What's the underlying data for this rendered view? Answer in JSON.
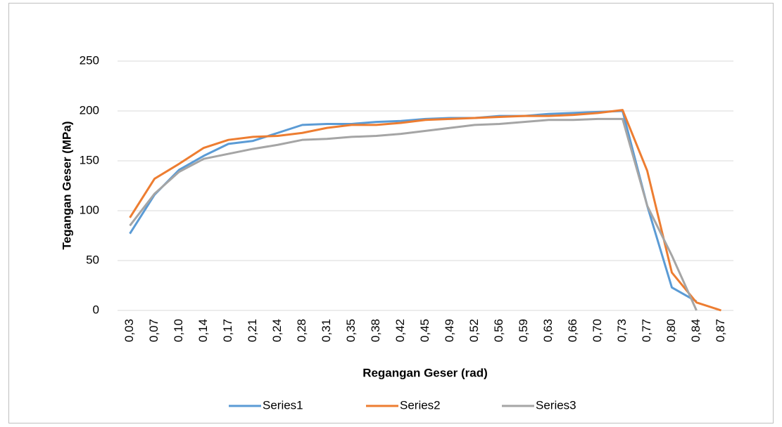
{
  "chart_data": {
    "type": "line",
    "x_label": "Regangan Geser (rad)",
    "y_label": "Tegangan Geser (MPa)",
    "categories": [
      "0,03",
      "0,07",
      "0,10",
      "0,14",
      "0,17",
      "0,21",
      "0,24",
      "0,28",
      "0,31",
      "0,35",
      "0,38",
      "0,42",
      "0,45",
      "0,49",
      "0,52",
      "0,56",
      "0,59",
      "0,63",
      "0,66",
      "0,70",
      "0,73",
      "0,77",
      "0,80",
      "0,84",
      "0,87"
    ],
    "series": [
      {
        "name": "Series1",
        "color": "#5b9bd5",
        "values": [
          77,
          116,
          141,
          155,
          167,
          170,
          178,
          186,
          187,
          187,
          189,
          190,
          192,
          193,
          193,
          195,
          195,
          197,
          198,
          199,
          200,
          105,
          23,
          9,
          null
        ]
      },
      {
        "name": "Series2",
        "color": "#ed7d31",
        "values": [
          93,
          132,
          147,
          163,
          171,
          174,
          175,
          178,
          183,
          186,
          186,
          188,
          191,
          192,
          193,
          194,
          195,
          195,
          196,
          198,
          201,
          140,
          38,
          8,
          0
        ]
      },
      {
        "name": "Series3",
        "color": "#a5a5a5",
        "values": [
          85,
          117,
          139,
          152,
          157,
          162,
          166,
          171,
          172,
          174,
          175,
          177,
          180,
          183,
          186,
          187,
          189,
          191,
          191,
          192,
          192,
          105,
          55,
          0,
          null
        ]
      }
    ],
    "ylim": [
      0,
      250
    ],
    "yticks": [
      0,
      50,
      100,
      150,
      200,
      250
    ],
    "grid": true,
    "legend": "bottom"
  }
}
